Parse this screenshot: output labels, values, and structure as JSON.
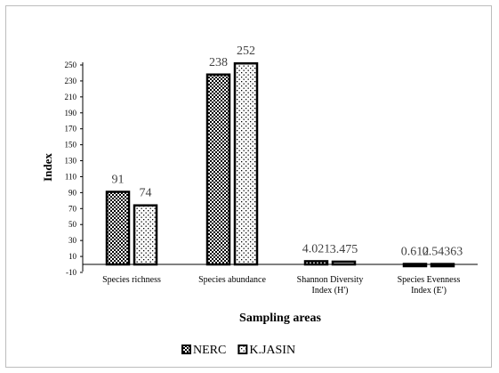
{
  "chart_data": {
    "type": "bar",
    "categories": [
      "Species richness",
      "Species abundance",
      "Shannon Diversity Index (H')",
      "Species Evenness Index (E')"
    ],
    "category_lines": [
      [
        "Species richness"
      ],
      [
        "Species abundance"
      ],
      [
        "Shannon Diversity",
        "Index (H')"
      ],
      [
        "Species Evenness",
        "Index (E')"
      ]
    ],
    "series": [
      {
        "name": "NERC",
        "values": [
          91,
          238,
          4.021,
          0.612
        ],
        "value_labels": [
          "91",
          "238",
          "4.021",
          "0.612"
        ],
        "pattern": "checker"
      },
      {
        "name": "K.JASIN",
        "values": [
          74,
          252,
          3.475,
          0.54363
        ],
        "value_labels": [
          "74",
          "252",
          "3.475",
          "0.54363"
        ],
        "pattern": "dots"
      }
    ],
    "title": "",
    "xlabel": "Sampling areas",
    "ylabel": "Index",
    "ylim": [
      -10,
      250
    ],
    "yticks": [
      -10,
      10,
      30,
      50,
      70,
      90,
      110,
      130,
      150,
      170,
      190,
      210,
      230,
      250
    ],
    "grid": false,
    "legend_position": "bottom"
  }
}
